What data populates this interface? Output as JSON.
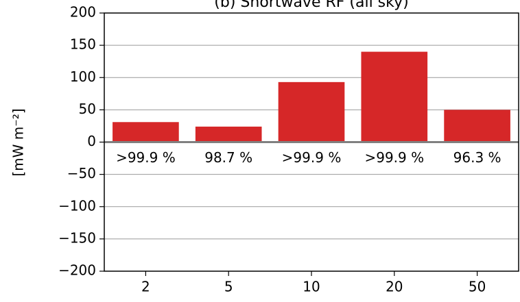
{
  "chart_data": {
    "type": "bar",
    "title": "(b)   Shortwave RF (all sky)",
    "ylabel": "[mW m⁻²]",
    "categories": [
      "2",
      "5",
      "10",
      "20",
      "50"
    ],
    "values": [
      31,
      24,
      93,
      140,
      50
    ],
    "annotations": [
      ">99.9 %",
      "98.7 %",
      ">99.9 %",
      ">99.9 %",
      "96.3 %"
    ],
    "color": "#d62728",
    "ylim": [
      -200,
      200
    ],
    "yticks": [
      {
        "value": -200,
        "label": "−200"
      },
      {
        "value": -150,
        "label": "−150"
      },
      {
        "value": -100,
        "label": "−100"
      },
      {
        "value": -50,
        "label": "−50"
      },
      0,
      50,
      100,
      150,
      200
    ],
    "grid": true
  }
}
